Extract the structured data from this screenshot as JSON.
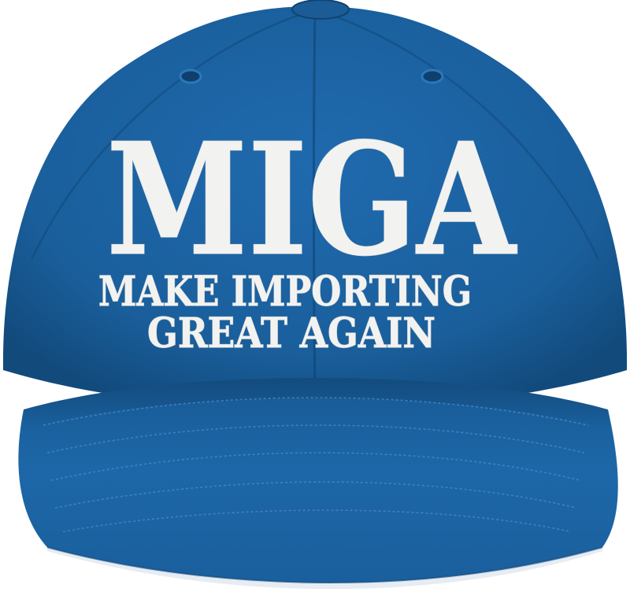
{
  "cap": {
    "colors": {
      "crown": "#1a5f9c",
      "crown_dark": "#144d80",
      "brim": "#1d67a8",
      "brim_dark": "#155690",
      "embroidery": "#f2f3f1",
      "underbrim": "#eef1f5"
    },
    "front": {
      "headline": "MIGA",
      "line1": "MAKE IMPORTING",
      "line2": "GREAT AGAIN"
    }
  }
}
